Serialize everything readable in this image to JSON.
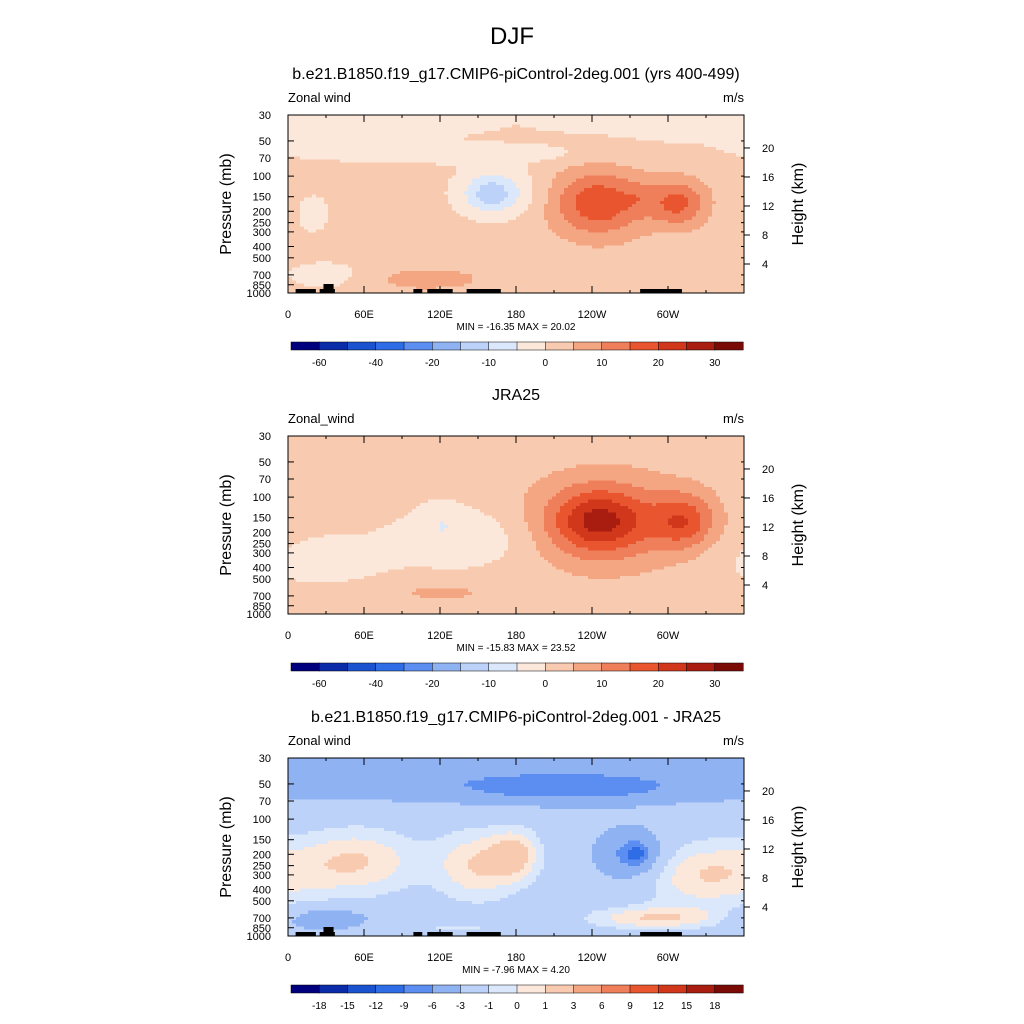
{
  "page_title": "DJF",
  "chart_data": [
    {
      "type": "heatmap",
      "title": "b.e21.B1850.f19_g17.CMIP6-piControl-2deg.001 (yrs 400-499)",
      "left_label": "Zonal wind",
      "units": "m/s",
      "ylabel": "Pressure (mb)",
      "ylabel_right": "Height (km)",
      "pressure_ticks": [
        "30",
        "50",
        "70",
        "100",
        "150",
        "200",
        "250",
        "300",
        "400",
        "500",
        "700",
        "850",
        "1000"
      ],
      "height_ticks": [
        "20",
        "16",
        "12",
        "8",
        "4"
      ],
      "lon_ticks": [
        "0",
        "60E",
        "120E",
        "180",
        "120W",
        "60W"
      ],
      "stats": "MIN = -16.35  MAX =  20.02",
      "colorbar": {
        "colors": [
          "#00007f",
          "#0a2ca8",
          "#1a52cf",
          "#2f6de6",
          "#5b8ef0",
          "#8fb2f3",
          "#bcd2f8",
          "#dbe8fb",
          "#fce8da",
          "#f8cbb0",
          "#f4a582",
          "#ef7e5a",
          "#e8552e",
          "#d1371a",
          "#a81d10",
          "#7a0a05"
        ],
        "labels": [
          "-60",
          "-40",
          "-20",
          "-10",
          "0",
          "10",
          "20",
          "30"
        ]
      },
      "field": {
        "background": 2,
        "blobs": [
          {
            "lon": 0,
            "lev": 30,
            "rx": 260,
            "ry": 36,
            "v": -4
          },
          {
            "lon": 130,
            "lev": 65,
            "rx": 120,
            "ry": 14,
            "v": -5
          },
          {
            "lon": 165,
            "lev": 140,
            "rx": 38,
            "ry": 110,
            "v": -8
          },
          {
            "lon": 160,
            "lev": 140,
            "rx": 20,
            "ry": 60,
            "v": -8
          },
          {
            "lon": 245,
            "lev": 170,
            "rx": 42,
            "ry": 190,
            "v": 17
          },
          {
            "lon": 308,
            "lev": 170,
            "rx": 26,
            "ry": 120,
            "v": 14
          },
          {
            "lon": 276,
            "lev": 150,
            "rx": 14,
            "ry": 60,
            "v": 3
          },
          {
            "lon": 20,
            "lev": 210,
            "rx": 16,
            "ry": 130,
            "v": -4
          },
          {
            "lon": 30,
            "lev": 700,
            "rx": 40,
            "ry": 280,
            "v": -4
          },
          {
            "lon": 110,
            "lev": 760,
            "rx": 50,
            "ry": 220,
            "v": 6
          }
        ]
      },
      "land": [
        [
          6,
          22
        ],
        [
          25,
          37
        ],
        [
          99,
          106
        ],
        [
          110,
          130
        ],
        [
          141,
          168
        ],
        [
          278,
          311
        ]
      ]
    },
    {
      "type": "heatmap",
      "title": "JRA25",
      "left_label": "Zonal_wind",
      "units": "m/s",
      "ylabel": "Pressure (mb)",
      "ylabel_right": "Height (km)",
      "pressure_ticks": [
        "30",
        "50",
        "70",
        "100",
        "150",
        "200",
        "250",
        "300",
        "400",
        "500",
        "700",
        "850",
        "1000"
      ],
      "height_ticks": [
        "20",
        "16",
        "12",
        "8",
        "4"
      ],
      "lon_ticks": [
        "0",
        "60E",
        "120E",
        "180",
        "120W",
        "60W"
      ],
      "stats": "MIN = -15.83  MAX =  23.52",
      "colorbar": {
        "colors": [
          "#00007f",
          "#0a2ca8",
          "#1a52cf",
          "#2f6de6",
          "#5b8ef0",
          "#8fb2f3",
          "#bcd2f8",
          "#dbe8fb",
          "#fce8da",
          "#f8cbb0",
          "#f4a582",
          "#ef7e5a",
          "#e8552e",
          "#d1371a",
          "#a81d10",
          "#7a0a05"
        ],
        "labels": [
          "-60",
          "-40",
          "-20",
          "-10",
          "0",
          "10",
          "20",
          "30"
        ]
      },
      "field": {
        "background": 2,
        "blobs": [
          {
            "lon": 30,
            "lev": 350,
            "rx": 60,
            "ry": 320,
            "v": -4
          },
          {
            "lon": 140,
            "lev": 220,
            "rx": 65,
            "ry": 220,
            "v": -6
          },
          {
            "lon": 120,
            "lev": 150,
            "rx": 18,
            "ry": 80,
            "v": -3
          },
          {
            "lon": 250,
            "lev": 160,
            "rx": 70,
            "ry": 300,
            "v": 12
          },
          {
            "lon": 245,
            "lev": 160,
            "rx": 40,
            "ry": 150,
            "v": 14
          },
          {
            "lon": 313,
            "lev": 160,
            "rx": 28,
            "ry": 140,
            "v": 14
          },
          {
            "lon": 120,
            "lev": 650,
            "rx": 60,
            "ry": 200,
            "v": 4
          }
        ]
      },
      "land": []
    },
    {
      "type": "heatmap",
      "title": "b.e21.B1850.f19_g17.CMIP6-piControl-2deg.001 - JRA25",
      "left_label": "Zonal wind",
      "units": "m/s",
      "ylabel": "Pressure (mb)",
      "ylabel_right": "Height (km)",
      "pressure_ticks": [
        "30",
        "50",
        "70",
        "100",
        "150",
        "200",
        "250",
        "300",
        "400",
        "500",
        "700",
        "850",
        "1000"
      ],
      "height_ticks": [
        "20",
        "16",
        "12",
        "8",
        "4"
      ],
      "lon_ticks": [
        "0",
        "60E",
        "120E",
        "180",
        "120W",
        "60W"
      ],
      "stats": "MIN =  -7.96  MAX =   4.20",
      "colorbar": {
        "colors": [
          "#00007f",
          "#0a2ca8",
          "#1a52cf",
          "#2f6de6",
          "#5b8ef0",
          "#8fb2f3",
          "#bcd2f8",
          "#dbe8fb",
          "#fce8da",
          "#f8cbb0",
          "#f4a582",
          "#ef7e5a",
          "#e8552e",
          "#d1371a",
          "#a81d10",
          "#7a0a05"
        ],
        "labels": [
          "-18",
          "-15",
          "-12",
          "-9",
          "-6",
          "-3",
          "-1",
          "0",
          "1",
          "3",
          "6",
          "9",
          "12",
          "15",
          "18"
        ]
      },
      "field": {
        "background": -2,
        "blobs": [
          {
            "lon": 190,
            "lev": 45,
            "rx": 360,
            "ry": 30,
            "v": -3
          },
          {
            "lon": 220,
            "lev": 55,
            "rx": 90,
            "ry": 18,
            "v": -4
          },
          {
            "lon": 55,
            "lev": 230,
            "rx": 55,
            "ry": 260,
            "v": 3
          },
          {
            "lon": 150,
            "lev": 250,
            "rx": 38,
            "ry": 300,
            "v": 3
          },
          {
            "lon": 180,
            "lev": 200,
            "rx": 22,
            "ry": 150,
            "v": 3
          },
          {
            "lon": 330,
            "lev": 300,
            "rx": 60,
            "ry": 330,
            "v": 3
          },
          {
            "lon": 270,
            "lev": 200,
            "rx": 30,
            "ry": 160,
            "v": -4
          },
          {
            "lon": 275,
            "lev": 200,
            "rx": 12,
            "ry": 50,
            "v": -6
          },
          {
            "lon": 290,
            "lev": 700,
            "rx": 60,
            "ry": 200,
            "v": 3
          },
          {
            "lon": 30,
            "lev": 720,
            "rx": 40,
            "ry": 200,
            "v": -3
          },
          {
            "lon": 130,
            "lev": 850,
            "rx": 70,
            "ry": 150,
            "v": 1
          }
        ]
      },
      "land": [
        [
          6,
          22
        ],
        [
          25,
          37
        ],
        [
          99,
          106
        ],
        [
          110,
          130
        ],
        [
          141,
          168
        ],
        [
          278,
          311
        ]
      ]
    }
  ]
}
